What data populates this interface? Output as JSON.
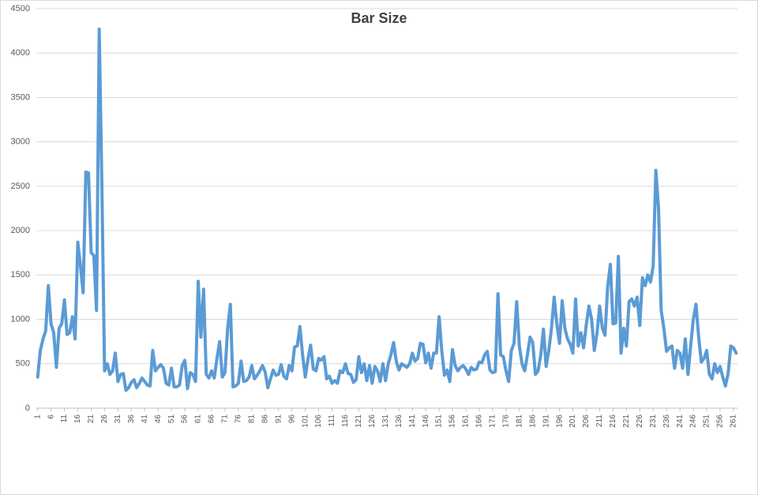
{
  "chart_data": {
    "type": "line",
    "title": "Bar Size",
    "categories": [
      "1",
      null,
      null,
      null,
      null,
      "6",
      null,
      null,
      null,
      null,
      "11",
      null,
      null,
      null,
      null,
      "16",
      null,
      null,
      null,
      null,
      "21",
      null,
      null,
      null,
      null,
      "26",
      null,
      null,
      null,
      null,
      "31",
      null,
      null,
      null,
      null,
      "36",
      null,
      null,
      null,
      null,
      "41",
      null,
      null,
      null,
      null,
      "46",
      null,
      null,
      null,
      null,
      "51",
      null,
      null,
      null,
      null,
      "56",
      null,
      null,
      null,
      null,
      "61",
      null,
      null,
      null,
      null,
      "66",
      null,
      null,
      null,
      null,
      "71",
      null,
      null,
      null,
      null,
      "76",
      null,
      null,
      null,
      null,
      "81",
      null,
      null,
      null,
      null,
      "86",
      null,
      null,
      null,
      null,
      "91",
      null,
      null,
      null,
      null,
      "96",
      null,
      null,
      null,
      null,
      "101",
      null,
      null,
      null,
      null,
      "106",
      null,
      null,
      null,
      null,
      "111",
      null,
      null,
      null,
      null,
      "116",
      null,
      null,
      null,
      null,
      "121",
      null,
      null,
      null,
      null,
      "126",
      null,
      null,
      null,
      null,
      "131",
      null,
      null,
      null,
      null,
      "136",
      null,
      null,
      null,
      null,
      "141",
      null,
      null,
      null,
      null,
      "146",
      null,
      null,
      null,
      null,
      "151",
      null,
      null,
      null,
      null,
      "156",
      null,
      null,
      null,
      null,
      "161",
      null,
      null,
      null,
      null,
      "166",
      null,
      null,
      null,
      null,
      "171",
      null,
      null,
      null,
      null,
      "176",
      null,
      null,
      null,
      null,
      "181",
      null,
      null,
      null,
      null,
      "186",
      null,
      null,
      null,
      null,
      "191",
      null,
      null,
      null,
      null,
      "196",
      null,
      null,
      null,
      null,
      "201",
      null,
      null,
      null,
      null,
      "206",
      null,
      null,
      null,
      null,
      "211",
      null,
      null,
      null,
      null,
      "216",
      null,
      null,
      null,
      null,
      "221",
      null,
      null,
      null,
      null,
      "226",
      null,
      null,
      null,
      null,
      "231",
      null,
      null,
      null,
      null,
      "236",
      null,
      null,
      null,
      null,
      "241",
      null,
      null,
      null,
      null,
      "246",
      null,
      null,
      null,
      null,
      "251",
      null,
      null,
      null,
      null,
      "256",
      null,
      null,
      null,
      null,
      "261",
      null
    ],
    "values": [
      350,
      650,
      780,
      870,
      1380,
      950,
      850,
      460,
      900,
      950,
      1220,
      830,
      850,
      1030,
      780,
      1870,
      1600,
      1300,
      2660,
      2650,
      1750,
      1720,
      1100,
      4270,
      2500,
      420,
      500,
      380,
      420,
      620,
      300,
      380,
      390,
      200,
      230,
      290,
      320,
      230,
      280,
      340,
      300,
      260,
      250,
      650,
      420,
      460,
      490,
      450,
      280,
      260,
      450,
      240,
      240,
      260,
      480,
      540,
      220,
      400,
      380,
      300,
      1430,
      800,
      1340,
      380,
      340,
      420,
      340,
      560,
      750,
      350,
      400,
      900,
      1170,
      240,
      250,
      280,
      530,
      300,
      310,
      350,
      480,
      330,
      370,
      420,
      480,
      410,
      230,
      330,
      430,
      370,
      380,
      490,
      360,
      330,
      480,
      420,
      690,
      700,
      920,
      600,
      350,
      550,
      710,
      440,
      420,
      560,
      540,
      580,
      330,
      360,
      280,
      310,
      280,
      420,
      400,
      500,
      390,
      380,
      290,
      320,
      580,
      400,
      500,
      310,
      480,
      280,
      470,
      420,
      300,
      500,
      310,
      500,
      600,
      740,
      530,
      430,
      500,
      480,
      460,
      500,
      620,
      530,
      560,
      730,
      720,
      510,
      620,
      450,
      620,
      620,
      1030,
      650,
      370,
      430,
      300,
      660,
      480,
      420,
      460,
      480,
      440,
      380,
      460,
      430,
      440,
      520,
      510,
      600,
      640,
      430,
      400,
      410,
      1290,
      600,
      580,
      420,
      300,
      650,
      730,
      1200,
      700,
      500,
      420,
      600,
      800,
      740,
      380,
      420,
      600,
      890,
      470,
      650,
      900,
      1250,
      950,
      730,
      1210,
      900,
      780,
      720,
      620,
      1230,
      700,
      850,
      680,
      940,
      1150,
      1000,
      650,
      840,
      1150,
      900,
      820,
      1370,
      1620,
      950,
      960,
      1710,
      620,
      900,
      700,
      1200,
      1230,
      1150,
      1250,
      930,
      1470,
      1380,
      1500,
      1420,
      1600,
      2680,
      2250,
      1100,
      900,
      640,
      680,
      700,
      450,
      650,
      620,
      450,
      780,
      380,
      700,
      1000,
      1170,
      800,
      520,
      560,
      650,
      380,
      330,
      500,
      400,
      470,
      350,
      250,
      390,
      700,
      680,
      620
    ],
    "color": "#5b9bd5",
    "ylim": [
      0,
      4500
    ],
    "yticks": [
      0,
      500,
      1000,
      1500,
      2000,
      2500,
      3000,
      3500,
      4000,
      4500
    ],
    "grid": true
  }
}
